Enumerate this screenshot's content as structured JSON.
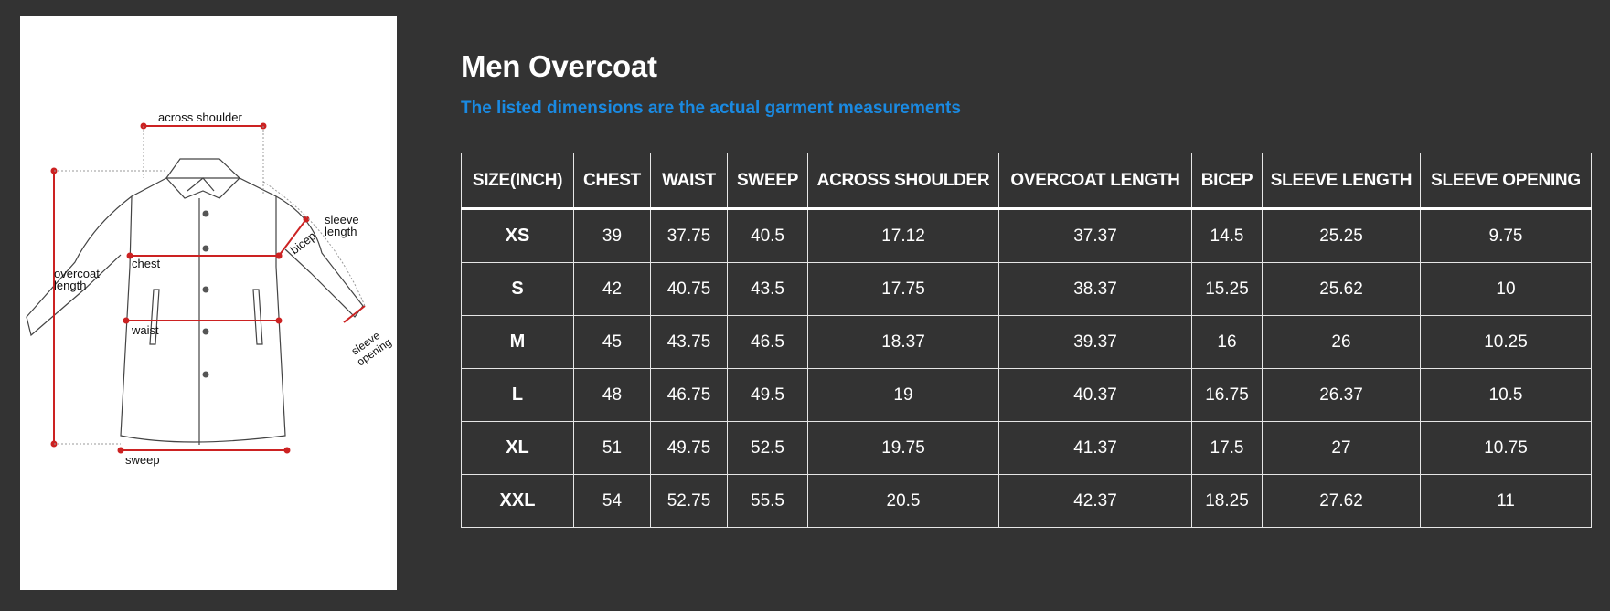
{
  "diagram": {
    "labels": {
      "across_shoulder": "across shoulder",
      "sleeve": "sleeve",
      "length": "length",
      "bicep": "bicep",
      "overcoat": "overcoat",
      "chest": "chest",
      "waist": "waist",
      "sleeve_opening_1": "sleeve",
      "sleeve_opening_2": "opening",
      "sweep": "sweep"
    }
  },
  "header": {
    "title": "Men Overcoat",
    "subtitle": "The listed dimensions are the actual garment measurements"
  },
  "table": {
    "columns": [
      "SIZE(INCH)",
      "CHEST",
      "WAIST",
      "SWEEP",
      "ACROSS SHOULDER",
      "OVERCOAT LENGTH",
      "BICEP",
      "SLEEVE LENGTH",
      "SLEEVE OPENING"
    ],
    "rows": [
      [
        "XS",
        "39",
        "37.75",
        "40.5",
        "17.12",
        "37.37",
        "14.5",
        "25.25",
        "9.75"
      ],
      [
        "S",
        "42",
        "40.75",
        "43.5",
        "17.75",
        "38.37",
        "15.25",
        "25.62",
        "10"
      ],
      [
        "M",
        "45",
        "43.75",
        "46.5",
        "18.37",
        "39.37",
        "16",
        "26",
        "10.25"
      ],
      [
        "L",
        "48",
        "46.75",
        "49.5",
        "19",
        "40.37",
        "16.75",
        "26.37",
        "10.5"
      ],
      [
        "XL",
        "51",
        "49.75",
        "52.5",
        "19.75",
        "41.37",
        "17.5",
        "27",
        "10.75"
      ],
      [
        "XXL",
        "54",
        "52.75",
        "55.5",
        "20.5",
        "42.37",
        "18.25",
        "27.62",
        "11"
      ]
    ]
  },
  "colors": {
    "background": "#333333",
    "subtitle": "#1a8ae2",
    "measure_line": "#cc2222"
  }
}
